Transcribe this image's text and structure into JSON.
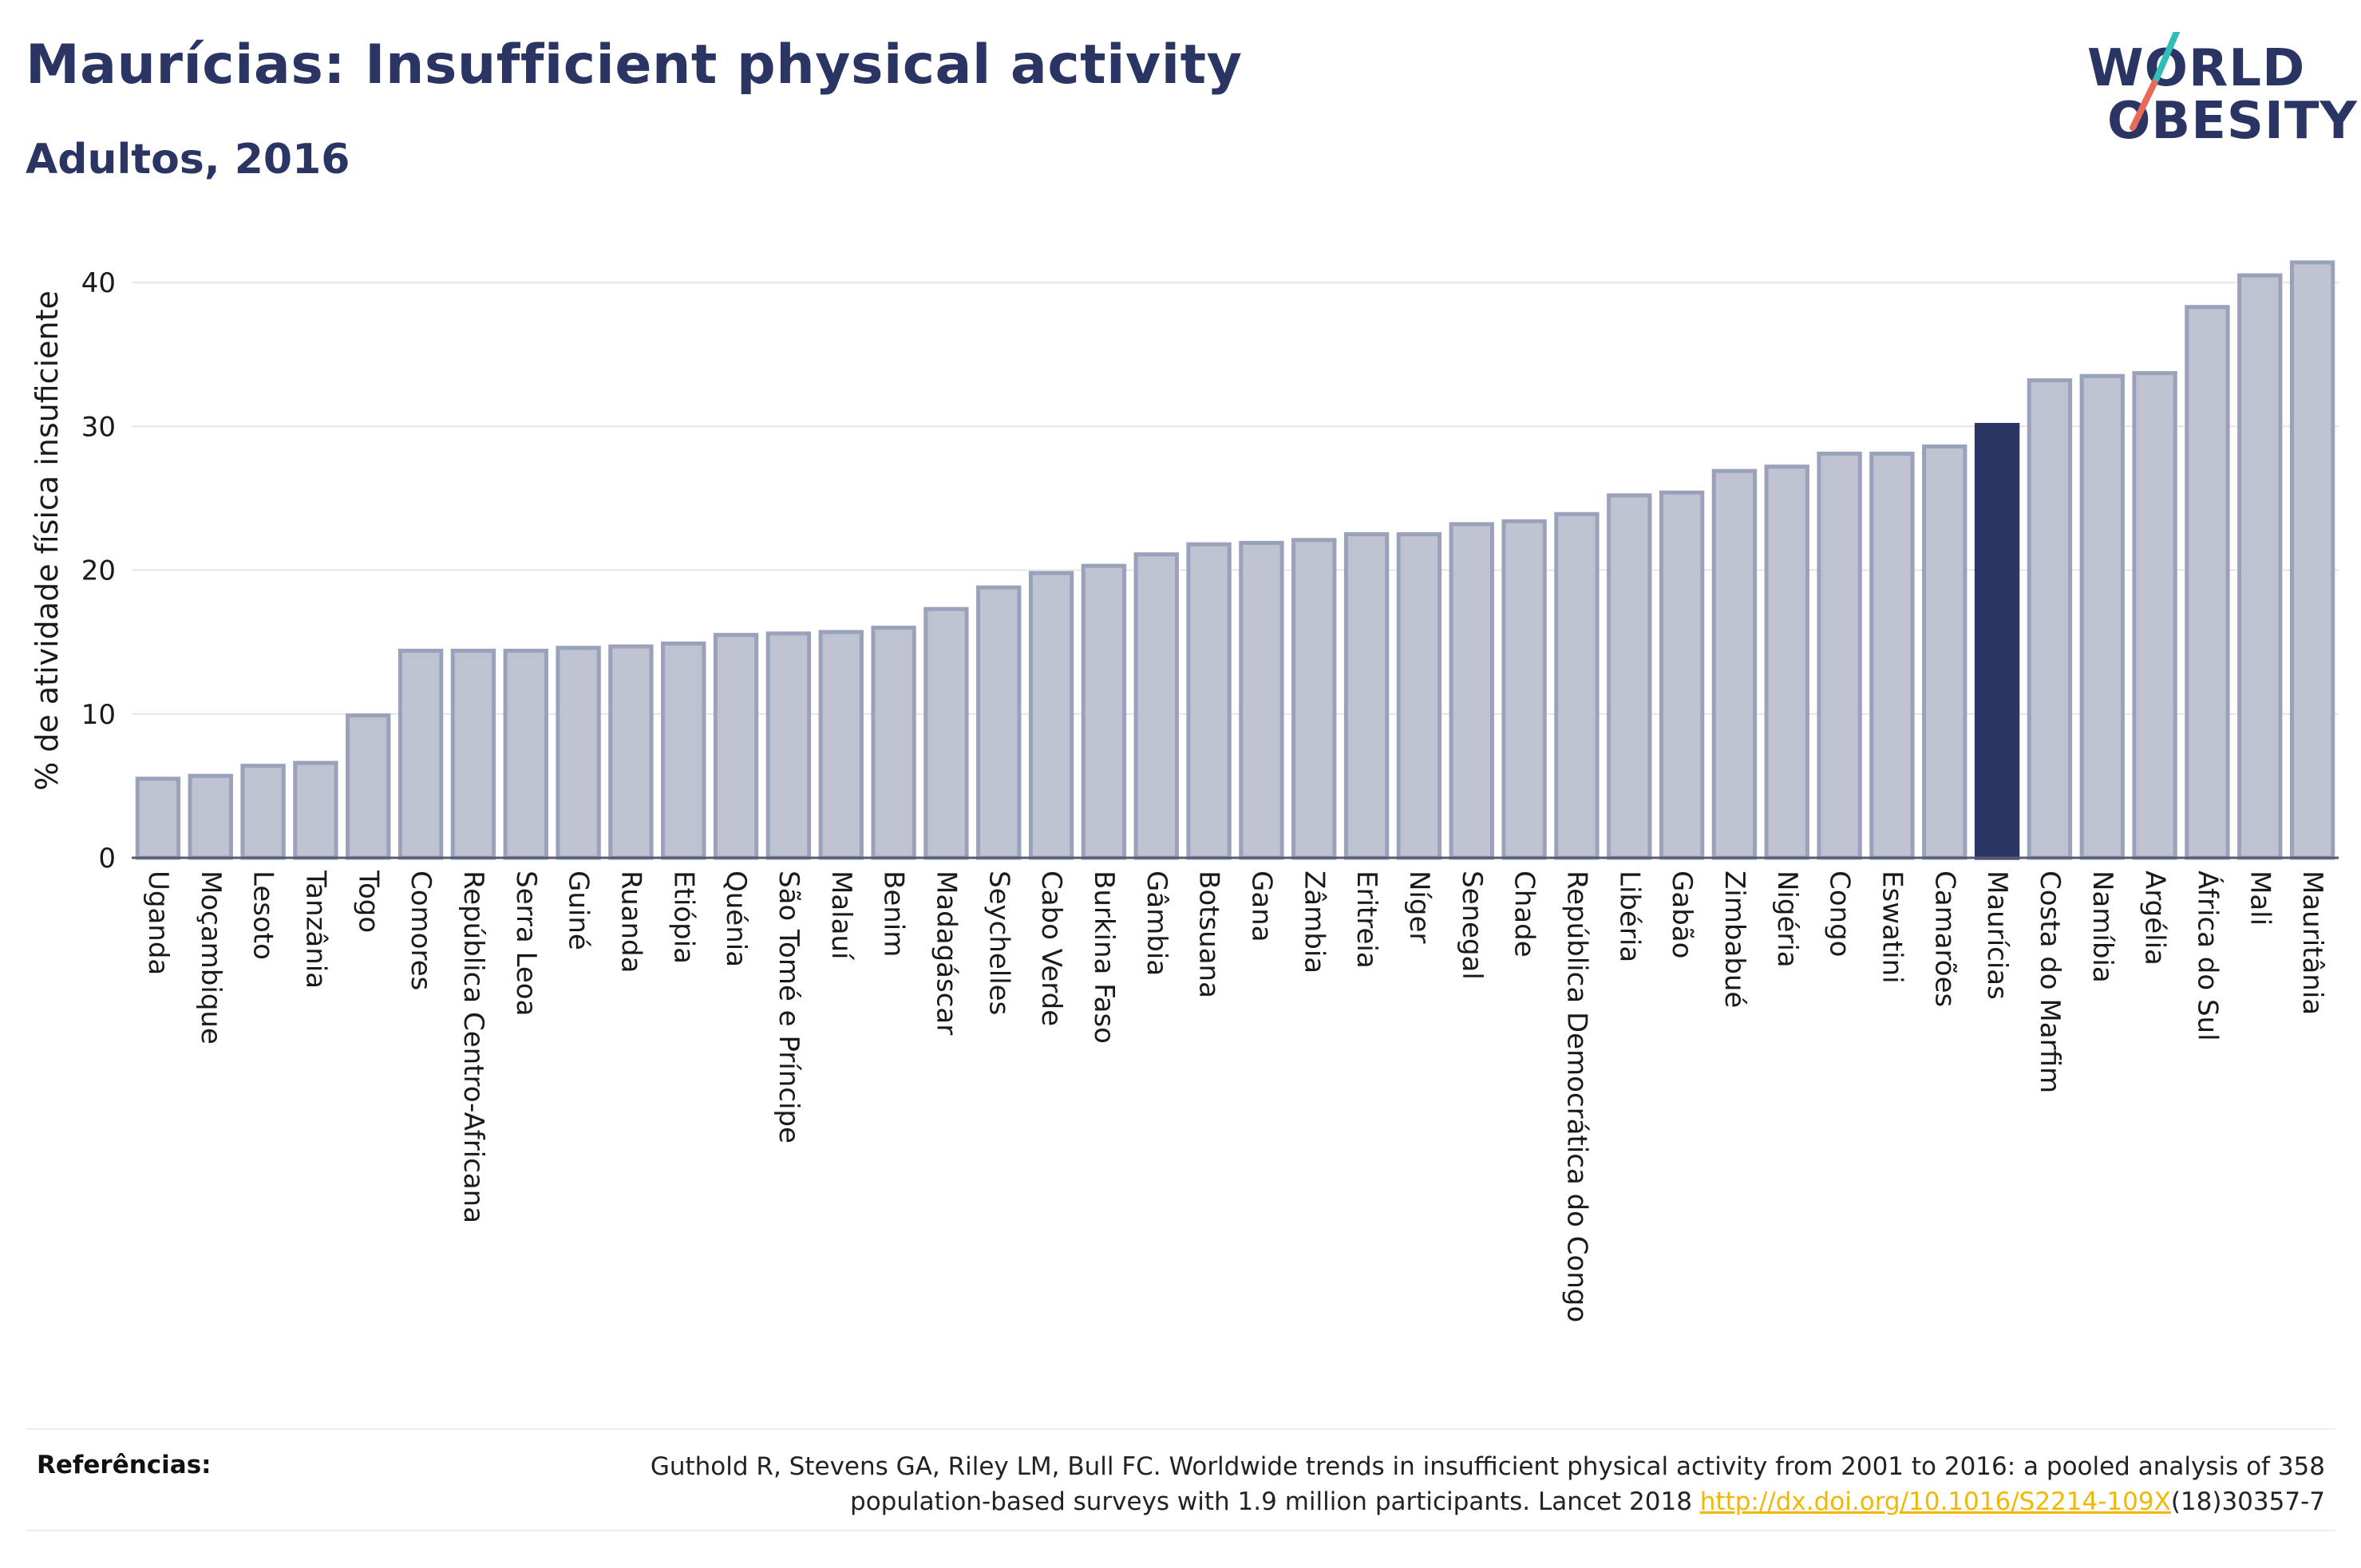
{
  "title": "Maurícias: Insufficient physical activity",
  "subtitle": "Adultos, 2016",
  "logo": {
    "line1": "WORLD",
    "line2": "OBESITY"
  },
  "colors": {
    "bar_fill": "#bfc3d1",
    "bar_stroke": "#9aa1ba",
    "highlight": "#2b3563",
    "axis_text": "#1a1a1a",
    "grid": "#e6e6e6",
    "logo_slash_teal": "#2fbfb4",
    "logo_slash_coral": "#ea6a5a",
    "link": "#f2b705"
  },
  "chart_data": {
    "type": "bar",
    "ylabel": "% de atividade física insuficiente",
    "xlabel": "",
    "ylim": [
      0,
      43
    ],
    "yticks": [
      0,
      10,
      20,
      30,
      40
    ],
    "grid": true,
    "highlight_category": "Maurícias",
    "categories": [
      "Uganda",
      "Moçambique",
      "Lesoto",
      "Tanzânia",
      "Togo",
      "Comores",
      "República Centro-Africana",
      "Serra Leoa",
      "Guiné",
      "Ruanda",
      "Etiópia",
      "Quénia",
      "São Tomé e Príncipe",
      "Malauí",
      "Benim",
      "Madagáscar",
      "Seychelles",
      "Cabo Verde",
      "Burkina Faso",
      "Gâmbia",
      "Botsuana",
      "Gana",
      "Zâmbia",
      "Eritreia",
      "Níger",
      "Senegal",
      "Chade",
      "República Democrática do Congo",
      "Libéria",
      "Gabão",
      "Zimbabué",
      "Nigéria",
      "Congo",
      "Eswatini",
      "Camarões",
      "Maurícias",
      "Costa do Marfim",
      "Namíbia",
      "Argélia",
      "África do Sul",
      "Mali",
      "Mauritânia"
    ],
    "values": [
      5.5,
      5.7,
      6.4,
      6.6,
      9.9,
      14.4,
      14.4,
      14.4,
      14.6,
      14.7,
      14.9,
      15.5,
      15.6,
      15.7,
      16.0,
      17.3,
      18.8,
      19.8,
      20.3,
      21.1,
      21.8,
      21.9,
      22.1,
      22.5,
      22.5,
      23.2,
      23.4,
      23.9,
      25.2,
      25.4,
      26.9,
      27.2,
      28.1,
      28.1,
      28.6,
      30.1,
      33.2,
      33.5,
      33.7,
      38.3,
      40.5,
      41.4
    ]
  },
  "references": {
    "label": "Referências:",
    "text_line1": "Guthold R, Stevens GA, Riley LM, Bull FC. Worldwide trends in insufficient physical activity from 2001 to 2016: a pooled analysis of 358",
    "text_line2_pre": "population-based surveys with 1.9 million participants. Lancet 2018 ",
    "link": "http://dx.doi.org/10.1016/S2214-109X",
    "text_line2_post": "(18)30357-7"
  }
}
